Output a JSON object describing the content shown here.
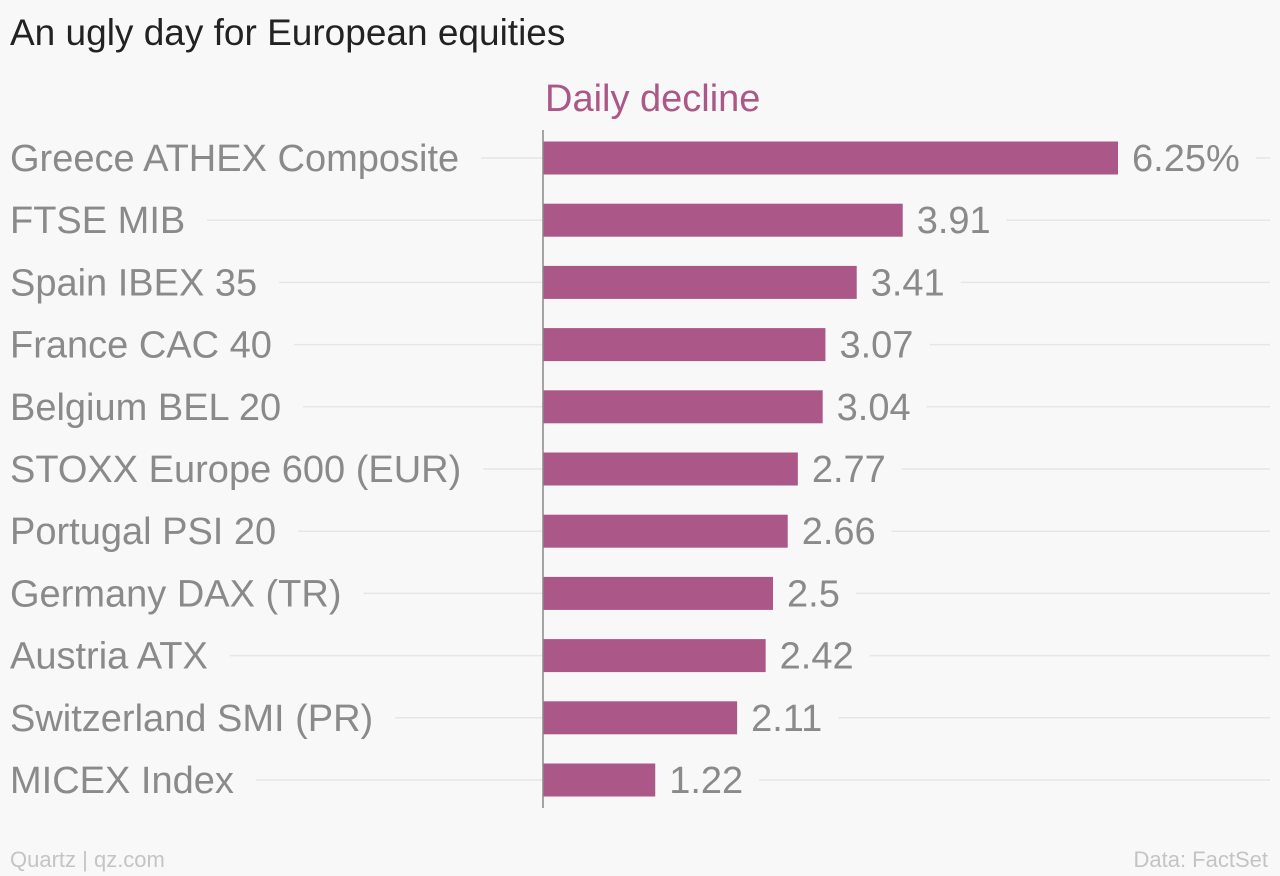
{
  "colors": {
    "bar": "#ab5787",
    "category_text": "#8a8a8a",
    "value_text": "#8a8a8a",
    "gridline": "#e6e6e6",
    "axis_line": "#888888",
    "series_label": "#ab5787"
  },
  "footer": {
    "source_left": "Quartz | qz.com",
    "source_right": "Data: FactSet"
  },
  "chart_data": {
    "type": "bar",
    "orientation": "horizontal",
    "title": "An ugly day for European equities",
    "series_label": "Daily decline",
    "categories": [
      "Greece ATHEX Composite",
      "FTSE MIB",
      "Spain IBEX 35",
      "France CAC 40",
      "Belgium BEL 20",
      "STOXX Europe 600 (EUR)",
      "Portugal PSI 20",
      "Germany DAX (TR)",
      "Austria ATX",
      "Switzerland SMI (PR)",
      "MICEX Index"
    ],
    "values": [
      6.25,
      3.91,
      3.41,
      3.07,
      3.04,
      2.77,
      2.66,
      2.5,
      2.42,
      2.11,
      1.22
    ],
    "value_labels": [
      "6.25%",
      "3.91",
      "3.41",
      "3.07",
      "3.04",
      "2.77",
      "2.66",
      "2.5",
      "2.42",
      "2.11",
      "1.22"
    ],
    "xlim": [
      0,
      6.25
    ],
    "unit": "%",
    "grid": true,
    "legend": "none"
  }
}
